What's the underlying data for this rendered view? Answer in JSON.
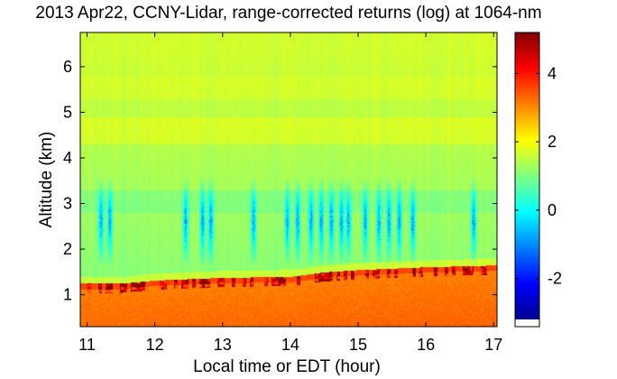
{
  "chart_data": {
    "type": "heatmap",
    "title": "2013 Apr22, CCNY-Lidar, range-corrected returns (log) at 1064-nm",
    "xlabel": "Local time or EDT (hour)",
    "ylabel": "Altitude (km)",
    "xlim": [
      10.9,
      17.05
    ],
    "ylim": [
      0.3,
      6.75
    ],
    "xticks": [
      "11",
      "12",
      "13",
      "14",
      "15",
      "16",
      "17"
    ],
    "yticks": [
      "1",
      "2",
      "3",
      "4",
      "5",
      "6"
    ],
    "colorbar": {
      "min": -3.2,
      "max": 5.2,
      "ticks": [
        "-2",
        "0",
        "2",
        "4"
      ],
      "colormap": "jet"
    },
    "boundary_layer_top_km": [
      {
        "time": 10.9,
        "alt": 1.25
      },
      {
        "time": 11.5,
        "alt": 1.25
      },
      {
        "time": 12.0,
        "alt": 1.32
      },
      {
        "time": 13.0,
        "alt": 1.38
      },
      {
        "time": 14.0,
        "alt": 1.4
      },
      {
        "time": 14.5,
        "alt": 1.5
      },
      {
        "time": 15.0,
        "alt": 1.55
      },
      {
        "time": 15.8,
        "alt": 1.6
      },
      {
        "time": 16.2,
        "alt": 1.62
      },
      {
        "time": 17.0,
        "alt": 1.65
      }
    ],
    "aerosol_cloud_events_hours": [
      11.2,
      11.33,
      12.45,
      12.7,
      12.82,
      13.45,
      13.95,
      14.1,
      14.3,
      14.45,
      14.6,
      14.75,
      14.85,
      15.1,
      15.3,
      15.45,
      15.6,
      15.8,
      16.7
    ]
  }
}
